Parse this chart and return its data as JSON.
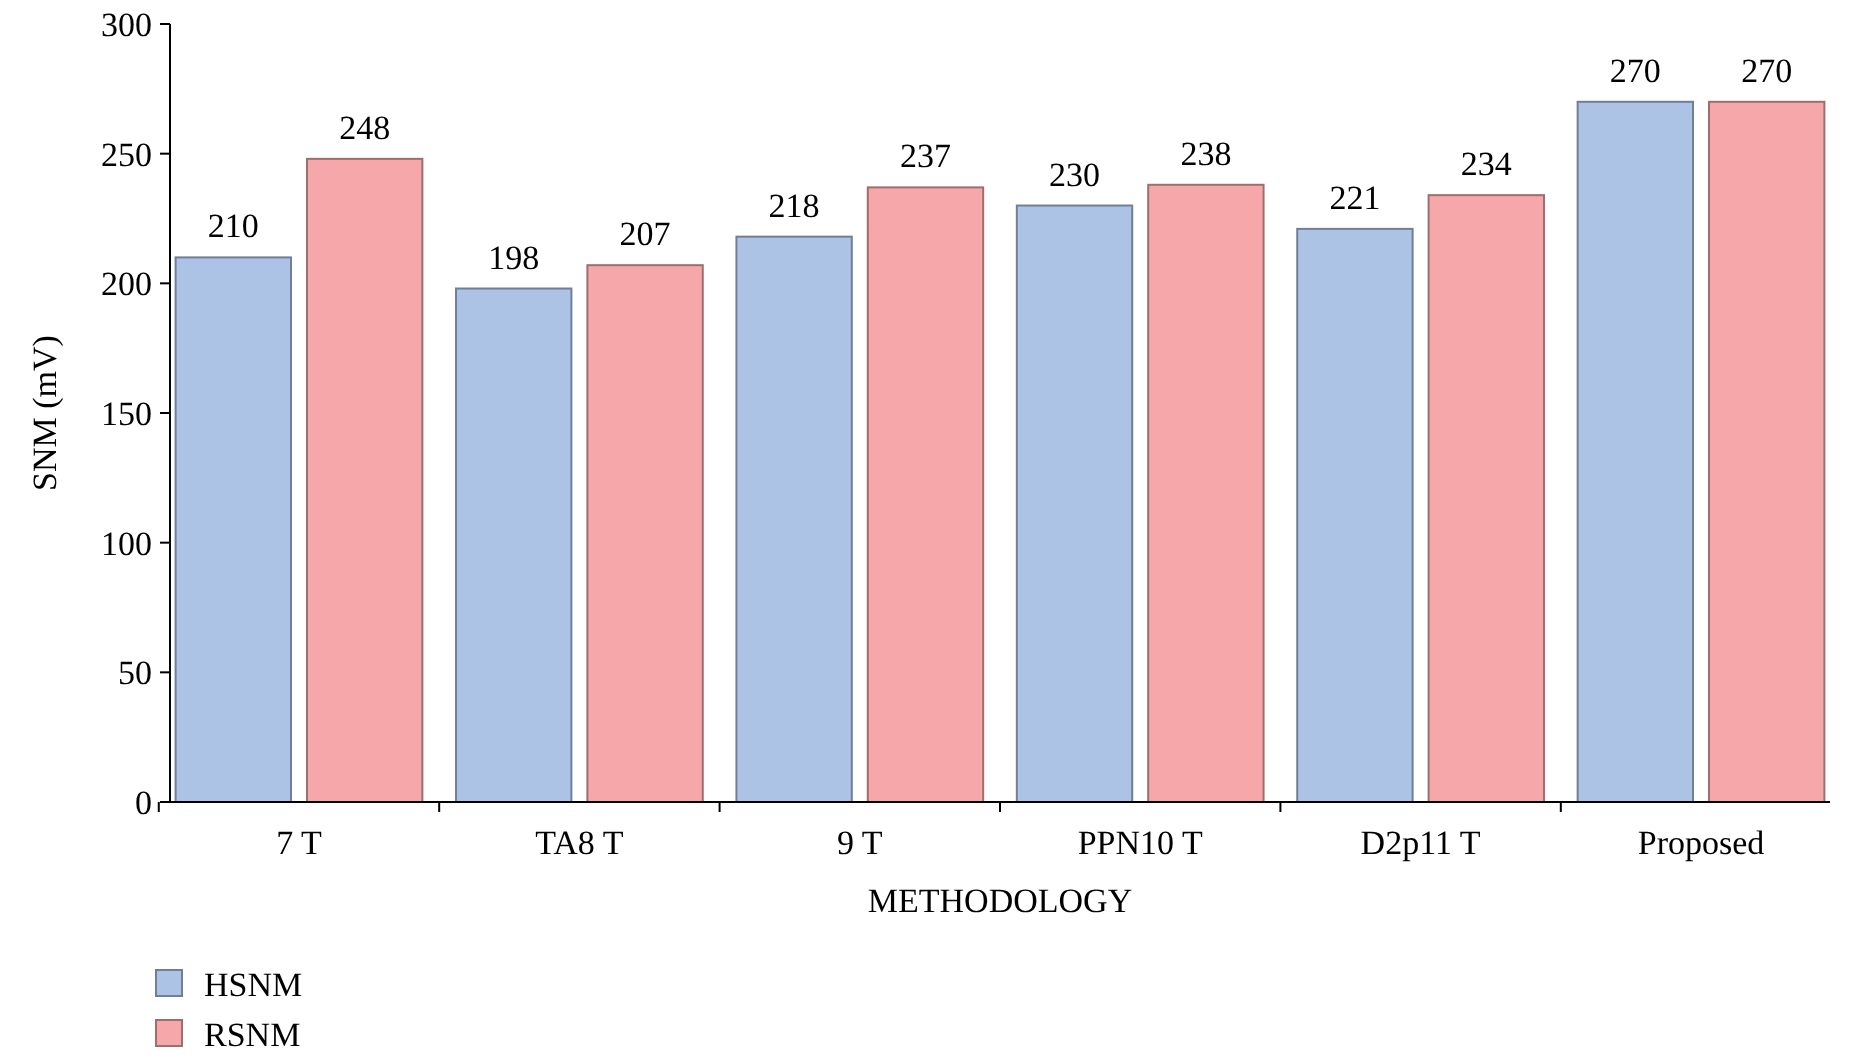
{
  "chart_data": {
    "type": "bar",
    "xlabel": "METHODOLOGY",
    "ylabel": "SNM (mV)",
    "categories": [
      "7 T",
      "TA8 T",
      "9 T",
      "PPN10 T",
      "D2p11 T",
      "Proposed"
    ],
    "series": [
      {
        "name": "HSNM",
        "color": "#adc3e6",
        "values": [
          210,
          198,
          218,
          230,
          221,
          270
        ]
      },
      {
        "name": "RSNM",
        "color": "#f6a7a9",
        "values": [
          248,
          207,
          237,
          238,
          234,
          270
        ]
      }
    ],
    "ylim": [
      0,
      300
    ],
    "yticks": [
      0,
      50,
      100,
      150,
      200,
      250,
      300
    ],
    "grid": false,
    "legend": "bottom left",
    "data_labels": true
  }
}
